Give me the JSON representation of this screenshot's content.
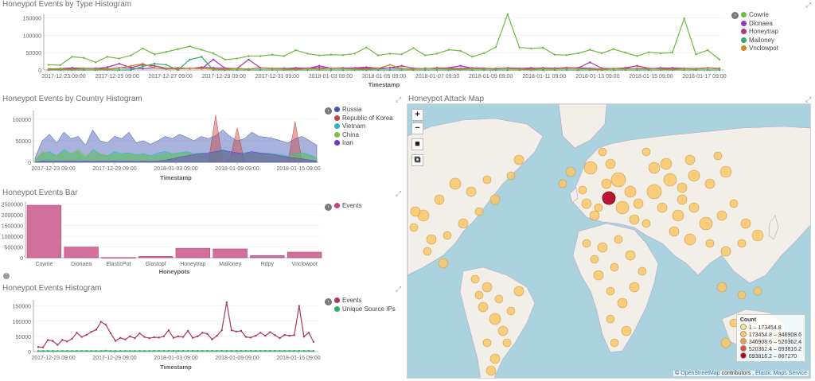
{
  "panels": {
    "type_histogram": {
      "title": "Honeypot Events by Type Histogram",
      "toggle_icon": "chevron-right-icon",
      "legend": [
        {
          "label": "Cowrie",
          "color": "#6dbb3f"
        },
        {
          "label": "Dionaea",
          "color": "#9a33c9"
        },
        {
          "label": "Honeytrap",
          "color": "#b0338c"
        },
        {
          "label": "Mailoney",
          "color": "#2eae6a"
        },
        {
          "label": "Vnclowpot",
          "color": "#c58b24"
        }
      ]
    },
    "country_histogram": {
      "title": "Honeypot Events by Country Histogram",
      "legend": [
        {
          "label": "Russia",
          "color": "#3d55b3"
        },
        {
          "label": "Republic of Korea",
          "color": "#c74242"
        },
        {
          "label": "Vietnam",
          "color": "#27b7bf"
        },
        {
          "label": "China",
          "color": "#7fc13f"
        },
        {
          "label": "Iran",
          "color": "#6d38c4"
        }
      ]
    },
    "events_bar": {
      "title": "Honeypot Events Bar",
      "legend": [
        {
          "label": "Events",
          "color": "#c2417a"
        }
      ]
    },
    "events_histogram": {
      "title": "Honeypot Events Histogram",
      "legend": [
        {
          "label": "Events",
          "color": "#b03466"
        },
        {
          "label": "Unique Source IPs",
          "color": "#2eae6a"
        }
      ]
    },
    "attack_map": {
      "title": "Honeypot Attack Map",
      "controls": [
        {
          "label": "+",
          "icon": "zoom-in-icon"
        },
        {
          "label": "−",
          "icon": "zoom-out-icon"
        },
        {
          "label": "■",
          "icon": "draw-rectangle-icon"
        },
        {
          "label": "⧉",
          "icon": "fit-bounds-icon"
        }
      ],
      "legend_title": "Count",
      "legend": [
        {
          "label": "1 – 173454.8",
          "color": "#fde68a"
        },
        {
          "label": "173454.8 – 346908.6",
          "color": "#fbc76a"
        },
        {
          "label": "346908.6 – 520362.4",
          "color": "#f59a45"
        },
        {
          "label": "520362.4 – 693816.2",
          "color": "#e34d2f"
        },
        {
          "label": "693816.2 – 867270",
          "color": "#b3002a"
        }
      ],
      "attribution_copy": "©",
      "attribution_osm": "OpenStreetMap",
      "attribution_contrib": " contributors , ",
      "attribution_ems": "Elastic Maps Service"
    }
  },
  "chart_data": [
    {
      "type": "line",
      "title": "Honeypot Events by Type Histogram",
      "xlabel": "Timestamp",
      "x_ticks": [
        "2017-12-23 09:00",
        "2017-12-25 09:00",
        "2017-12-27 09:00",
        "2017-12-29 09:00",
        "2017-12-31 09:00",
        "2018-01-03 09:00",
        "2018-01-05 09:00",
        "2018-01-07 09:00",
        "2018-01-09 09:00",
        "2018-01-11 09:00",
        "2018-01-13 09:00",
        "2018-01-15 09:00",
        "2018-01-17 09:00"
      ],
      "y_ticks": [
        "150000",
        "100000",
        "50000",
        "0"
      ],
      "ylim": [
        0,
        160000
      ],
      "series": [
        {
          "name": "Cowrie",
          "color": "#6dbb3f",
          "values": [
            15000,
            14000,
            38000,
            35000,
            22000,
            38000,
            33000,
            42000,
            62000,
            45000,
            52000,
            60000,
            68000,
            58000,
            48000,
            30000,
            33000,
            40000,
            40000,
            44000,
            40000,
            57000,
            47000,
            42000,
            44000,
            43000,
            47000,
            65000,
            42000,
            47000,
            45000,
            63000,
            42000,
            47000,
            58000,
            55000,
            38000,
            48000,
            66000,
            160000,
            65000,
            62000,
            64000,
            44000,
            43000,
            48000,
            58000,
            48000,
            60000,
            50000,
            40000,
            51000,
            48000,
            50000,
            148000,
            45000,
            57000,
            30000
          ]
        },
        {
          "name": "Dionaea",
          "color": "#9a33c9",
          "values": [
            2000,
            3000,
            4000,
            3000,
            5000,
            3000,
            6000,
            5000,
            4000,
            6000,
            3000,
            4000,
            5000,
            4000,
            30000,
            5000,
            4000,
            3000,
            6000,
            4000,
            5000,
            3000,
            4000,
            12000,
            5000,
            6000,
            4000,
            5000,
            3000,
            6000,
            4000,
            3000,
            5000,
            4000,
            6000,
            12000,
            5000,
            4000,
            3000,
            5000,
            4000,
            6000,
            3000,
            5000,
            4000,
            6000,
            5000,
            3000,
            4000,
            5000,
            4000,
            3000,
            6000,
            5000,
            4000,
            3000,
            5000,
            4000
          ]
        },
        {
          "name": "Honeytrap",
          "color": "#b0338c",
          "values": [
            3000,
            4000,
            6000,
            5000,
            4000,
            8000,
            18000,
            7000,
            15000,
            12000,
            5000,
            6000,
            4000,
            8000,
            6000,
            5000,
            4000,
            30000,
            6000,
            5000,
            4000,
            6000,
            5000,
            7000,
            4000,
            5000,
            6000,
            8000,
            5000,
            6000,
            12000,
            5000,
            4000,
            6000,
            5000,
            4000,
            6000,
            5000,
            4000,
            6000,
            5000,
            4000,
            6000,
            5000,
            7000,
            6000,
            22000,
            5000,
            4000,
            6000,
            12000,
            5000,
            4000,
            6000,
            5000,
            4000,
            6000,
            5000
          ]
        },
        {
          "name": "Mailoney",
          "color": "#2eae6a",
          "values": [
            0,
            0,
            0,
            0,
            0,
            0,
            0,
            0,
            10000,
            18000,
            15000,
            0,
            30000,
            38000,
            0,
            0,
            0,
            0,
            0,
            0,
            0,
            0,
            0,
            0,
            0,
            0,
            0,
            0,
            0,
            0,
            0,
            0,
            0,
            0,
            0,
            0,
            0,
            0,
            0,
            0,
            0,
            0,
            0,
            0,
            0,
            0,
            0,
            0,
            0,
            0,
            0,
            0,
            0,
            0,
            0,
            0,
            0,
            0
          ]
        },
        {
          "name": "Vnclowpot",
          "color": "#c58b24",
          "values": [
            2000,
            3000,
            2000,
            4000,
            3000,
            2000,
            5000,
            12000,
            18000,
            6000,
            4000,
            3000,
            5000,
            4000,
            3000,
            2000,
            4000,
            3000,
            5000,
            4000,
            3000,
            2000,
            4000,
            3000,
            5000,
            4000,
            3000,
            2000,
            4000,
            15000,
            4000,
            3000,
            5000,
            4000,
            3000,
            2000,
            4000,
            3000,
            5000,
            4000,
            3000,
            2000,
            4000,
            3000,
            5000,
            4000,
            3000,
            2000,
            4000,
            3000,
            5000,
            4000,
            3000,
            2000,
            4000,
            3000,
            5000,
            4000
          ]
        }
      ]
    },
    {
      "type": "area",
      "title": "Honeypot Events by Country Histogram",
      "xlabel": "Timestamp",
      "x_ticks": [
        "2017-12-23 09:00",
        "2017-12-29 09:00",
        "2018-01-03 09:00",
        "2018-01-09 09:00",
        "2018-01-15 09:00"
      ],
      "y_ticks": [
        "100000",
        "50000",
        "0"
      ],
      "ylim": [
        0,
        120000
      ],
      "series": [
        {
          "name": "Russia",
          "color": "#3d55b3",
          "values": [
            10000,
            50000,
            65000,
            45000,
            70000,
            55000,
            60000,
            40000,
            75000,
            50000,
            45000,
            60000,
            55000,
            70000,
            45000,
            50000,
            42000,
            50000,
            60000,
            55000,
            65000,
            58000,
            50000,
            60000,
            55000,
            62000,
            75000,
            60000,
            50000,
            55000,
            70000,
            60000,
            58000,
            55000,
            50000,
            45000,
            55000,
            60000,
            50000,
            40000
          ]
        },
        {
          "name": "Republic of Korea",
          "color": "#c74242",
          "values": [
            0,
            0,
            0,
            0,
            0,
            0,
            0,
            0,
            0,
            0,
            0,
            0,
            0,
            0,
            0,
            0,
            0,
            0,
            0,
            0,
            0,
            0,
            0,
            0,
            0,
            110000,
            0,
            10000,
            80000,
            0,
            0,
            0,
            0,
            0,
            0,
            0,
            95000,
            0,
            0,
            0
          ]
        },
        {
          "name": "Vietnam",
          "color": "#27b7bf",
          "values": [
            5000,
            20000,
            25000,
            15000,
            30000,
            20000,
            25000,
            10000,
            30000,
            20000,
            15000,
            25000,
            20000,
            22000,
            18000,
            20000,
            15000,
            22000,
            25000,
            20000,
            22000,
            25000,
            20000,
            22000,
            18000,
            25000,
            30000,
            22000,
            18000,
            22000,
            25000,
            20000,
            22000,
            20000,
            18000,
            15000,
            20000,
            22000,
            18000,
            10000
          ]
        },
        {
          "name": "China",
          "color": "#7fc13f",
          "values": [
            5000,
            25000,
            20000,
            15000,
            25000,
            20000,
            30000,
            15000,
            25000,
            20000,
            15000,
            20000,
            18000,
            20000,
            15000,
            18000,
            12000,
            15000,
            20000,
            18000,
            20000,
            22000,
            18000,
            20000,
            15000,
            22000,
            25000,
            18000,
            15000,
            20000,
            22000,
            18000,
            20000,
            18000,
            15000,
            12000,
            18000,
            20000,
            15000,
            8000
          ]
        },
        {
          "name": "Iran",
          "color": "#6d38c4",
          "values": [
            0,
            3000,
            2000,
            3000,
            2000,
            3000,
            2000,
            3000,
            2000,
            3000,
            2000,
            3000,
            2000,
            3000,
            2000,
            3000,
            2000,
            3000,
            5000,
            8000,
            12000,
            15000,
            18000,
            20000,
            22000,
            25000,
            28000,
            25000,
            22000,
            20000,
            25000,
            22000,
            20000,
            18000,
            15000,
            12000,
            10000,
            8000,
            5000,
            3000
          ]
        }
      ]
    },
    {
      "type": "bar",
      "title": "Honeypot Events Bar",
      "xlabel": "Honeypots",
      "categories": [
        "Cowrie",
        "Dionaea",
        "ElasticPot",
        "Glastopf",
        "Honeytrap",
        "Mailoney",
        "Rdpy",
        "Vnclowpot"
      ],
      "values": [
        2450000,
        500000,
        10000,
        60000,
        440000,
        410000,
        100000,
        260000
      ],
      "y_ticks": [
        "2500000",
        "2000000",
        "1500000",
        "1000000",
        "500000",
        "0"
      ],
      "ylim": [
        0,
        2600000
      ],
      "color": "#c2417a"
    },
    {
      "type": "line",
      "title": "Honeypot Events Histogram",
      "xlabel": "Timestamp",
      "x_ticks": [
        "2017-12-23 09:00",
        "2017-12-29 09:00",
        "2018-01-03 09:00",
        "2018-01-09 09:00",
        "2018-01-15 09:00"
      ],
      "y_ticks": [
        "150000",
        "100000",
        "50000",
        "0"
      ],
      "ylim": [
        0,
        170000
      ],
      "series": [
        {
          "name": "Events",
          "color": "#b03466",
          "values": [
            15000,
            14000,
            38000,
            35000,
            22000,
            38000,
            33000,
            42000,
            62000,
            48000,
            55000,
            65000,
            72000,
            98000,
            88000,
            60000,
            35000,
            45000,
            40000,
            50000,
            44000,
            60000,
            48000,
            44000,
            47000,
            46000,
            50000,
            70000,
            45000,
            50000,
            48000,
            68000,
            45000,
            50000,
            62000,
            58000,
            40000,
            52000,
            70000,
            162000,
            70000,
            66000,
            68000,
            48000,
            46000,
            52000,
            62000,
            52000,
            64000,
            54000,
            44000,
            55000,
            52000,
            54000,
            150000,
            49000,
            62000,
            32000
          ]
        },
        {
          "name": "Unique Source IPs",
          "color": "#2eae6a",
          "values": [
            2000,
            2000,
            2000,
            2000,
            2000,
            2000,
            2000,
            2000,
            2000,
            2000,
            2000,
            2000,
            2000,
            2000,
            3000,
            2000,
            2000,
            2000,
            2000,
            2000,
            2000,
            2000,
            2000,
            2000,
            2500,
            2500,
            2500,
            2500,
            2500,
            2500,
            2500,
            2500,
            2500,
            2500,
            2500,
            2500,
            2500,
            2500,
            2500,
            2500,
            2500,
            2500,
            2500,
            2500,
            2500,
            2500,
            2500,
            2500,
            2500,
            2500,
            2500,
            2500,
            2500,
            2500,
            2500,
            2500,
            2500,
            2500
          ]
        }
      ]
    }
  ]
}
